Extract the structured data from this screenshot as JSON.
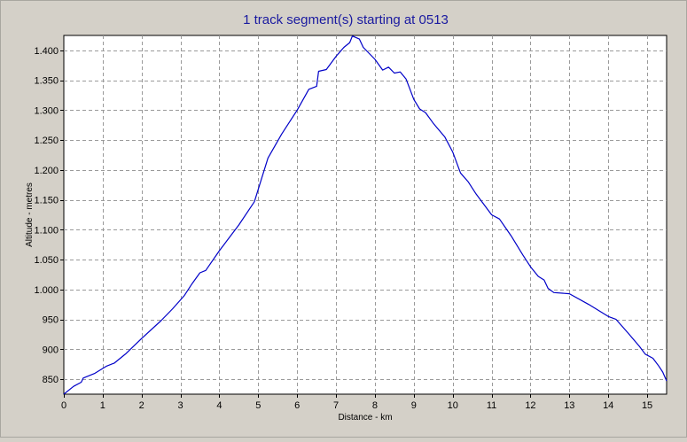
{
  "chart_data": {
    "type": "line",
    "title": "1 track segment(s) starting at 0513",
    "xlabel": "Distance - km",
    "ylabel": "Altitude - metres",
    "xlim": [
      0,
      15.5
    ],
    "ylim": [
      825,
      1425
    ],
    "x_ticks": [
      0,
      1,
      2,
      3,
      4,
      5,
      6,
      7,
      8,
      9,
      10,
      11,
      12,
      13,
      14,
      15
    ],
    "x_tick_labels": [
      "0",
      "1",
      "2",
      "3",
      "4",
      "5",
      "6",
      "7",
      "8",
      "9",
      "10",
      "11",
      "12",
      "13",
      "14",
      "15"
    ],
    "y_ticks": [
      850,
      900,
      950,
      1000,
      1050,
      1100,
      1150,
      1200,
      1250,
      1300,
      1350,
      1400
    ],
    "y_tick_labels": [
      "850",
      "900",
      "950",
      "1.000",
      "1.050",
      "1.100",
      "1.150",
      "1.200",
      "1.250",
      "1.300",
      "1.350",
      "1.400"
    ],
    "grid": true,
    "colors": {
      "line": "#0000c8",
      "title": "#1a1aa0",
      "plot_bg": "#ffffff",
      "frame_bg": "#d4d0c8",
      "grid": "#9a9a9a"
    },
    "series": [
      {
        "points": [
          [
            0.0,
            825
          ],
          [
            0.25,
            838
          ],
          [
            0.45,
            845
          ],
          [
            0.5,
            852
          ],
          [
            0.8,
            860
          ],
          [
            1.1,
            872
          ],
          [
            1.3,
            877
          ],
          [
            1.6,
            893
          ],
          [
            2.0,
            918
          ],
          [
            2.5,
            948
          ],
          [
            2.8,
            968
          ],
          [
            3.1,
            990
          ],
          [
            3.3,
            1010
          ],
          [
            3.5,
            1028
          ],
          [
            3.65,
            1032
          ],
          [
            4.0,
            1065
          ],
          [
            4.5,
            1108
          ],
          [
            4.9,
            1147
          ],
          [
            5.05,
            1178
          ],
          [
            5.25,
            1220
          ],
          [
            5.6,
            1260
          ],
          [
            6.0,
            1300
          ],
          [
            6.3,
            1335
          ],
          [
            6.5,
            1340
          ],
          [
            6.55,
            1365
          ],
          [
            6.75,
            1368
          ],
          [
            7.0,
            1390
          ],
          [
            7.2,
            1405
          ],
          [
            7.35,
            1413
          ],
          [
            7.42,
            1424
          ],
          [
            7.6,
            1419
          ],
          [
            7.7,
            1405
          ],
          [
            8.0,
            1385
          ],
          [
            8.2,
            1367
          ],
          [
            8.35,
            1372
          ],
          [
            8.5,
            1362
          ],
          [
            8.65,
            1364
          ],
          [
            8.8,
            1352
          ],
          [
            8.9,
            1335
          ],
          [
            9.0,
            1318
          ],
          [
            9.15,
            1302
          ],
          [
            9.3,
            1296
          ],
          [
            9.5,
            1278
          ],
          [
            9.8,
            1255
          ],
          [
            10.0,
            1230
          ],
          [
            10.2,
            1195
          ],
          [
            10.4,
            1180
          ],
          [
            10.6,
            1160
          ],
          [
            11.0,
            1125
          ],
          [
            11.2,
            1118
          ],
          [
            11.5,
            1090
          ],
          [
            11.8,
            1058
          ],
          [
            12.0,
            1038
          ],
          [
            12.2,
            1022
          ],
          [
            12.35,
            1016
          ],
          [
            12.45,
            1002
          ],
          [
            12.6,
            995
          ],
          [
            13.0,
            993
          ],
          [
            13.5,
            975
          ],
          [
            14.0,
            955
          ],
          [
            14.2,
            950
          ],
          [
            14.5,
            928
          ],
          [
            14.8,
            905
          ],
          [
            14.95,
            892
          ],
          [
            15.15,
            885
          ],
          [
            15.3,
            872
          ],
          [
            15.4,
            862
          ],
          [
            15.5,
            847
          ]
        ]
      }
    ]
  }
}
